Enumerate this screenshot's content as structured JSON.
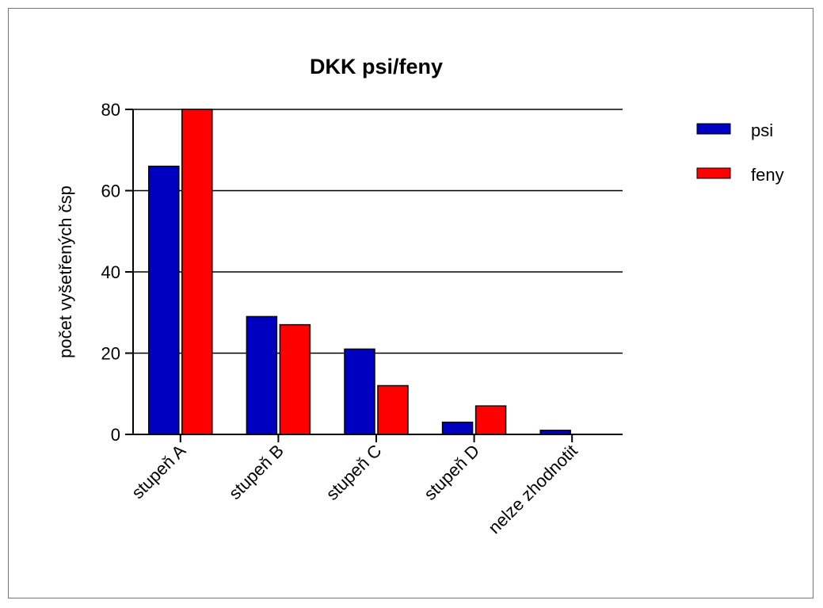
{
  "chart_data": {
    "type": "bar",
    "title": "DKK psi/feny",
    "xlabel": "",
    "ylabel": "počet vyšetřených čsp",
    "ylim": [
      0,
      80
    ],
    "yticks": [
      0,
      20,
      40,
      60,
      80
    ],
    "grid": true,
    "legend_position": "top-right",
    "categories": [
      "stupeň A",
      "stupeň B",
      "stupeň C",
      "stupeň D",
      "nelze zhodnotit"
    ],
    "series": [
      {
        "name": "psi",
        "color": "#0000c0",
        "values": [
          66,
          29,
          21,
          3,
          1
        ]
      },
      {
        "name": "feny",
        "color": "#ff0000",
        "values": [
          80,
          27,
          12,
          7,
          0
        ]
      }
    ]
  }
}
